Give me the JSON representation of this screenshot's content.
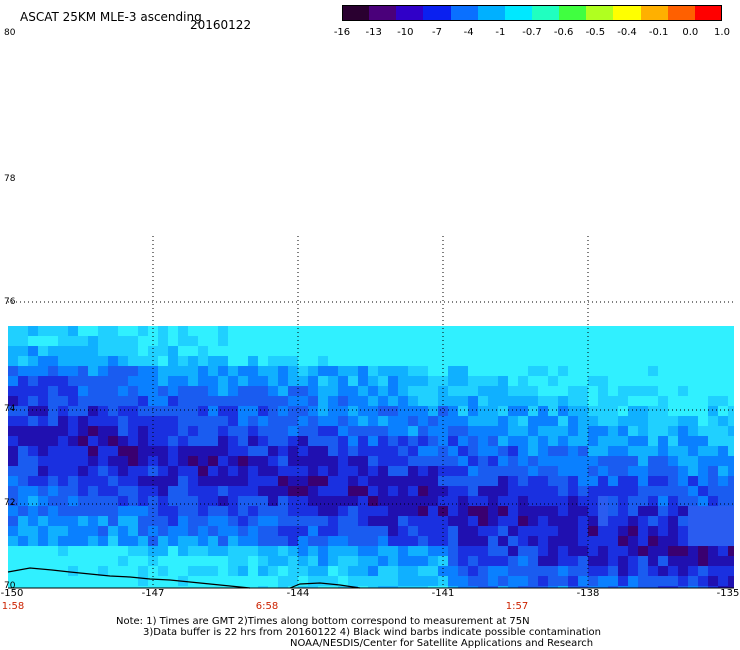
{
  "header": {
    "title": "ASCAT 25KM MLE-3 ascending",
    "date": "20160122"
  },
  "colorbar": {
    "colors": [
      "#2a0030",
      "#4a007a",
      "#3000c8",
      "#0a20f0",
      "#0a70ff",
      "#00b0ff",
      "#00e8ff",
      "#20ffc0",
      "#40ff40",
      "#b0ff20",
      "#ffff00",
      "#ffb000",
      "#ff6000",
      "#ff0000"
    ],
    "tick_labels": [
      "-16",
      "-13",
      "-10",
      "-7",
      "-4",
      "-1",
      "-0.7",
      "-0.6",
      "-0.5",
      "-0.4",
      "-0.1",
      "0.0",
      "1.0"
    ]
  },
  "axes": {
    "lat_labels": [
      "80",
      "78",
      "76",
      "74",
      "72",
      "70"
    ],
    "lon_labels": [
      "-150",
      "-147",
      "-144",
      "-141",
      "-138",
      "-135"
    ],
    "time_labels": [
      "1:58",
      "6:58",
      "1:57"
    ]
  },
  "notes": [
    "Note: 1) Times are GMT 2)Times along bottom correspond to measurement at 75N",
    "3)Data buffer is 22 hrs from 20160122 4) Black wind barbs indicate possible contamination",
    "NOAA/NESDIS/Center for Satellite Applications and Research"
  ]
}
